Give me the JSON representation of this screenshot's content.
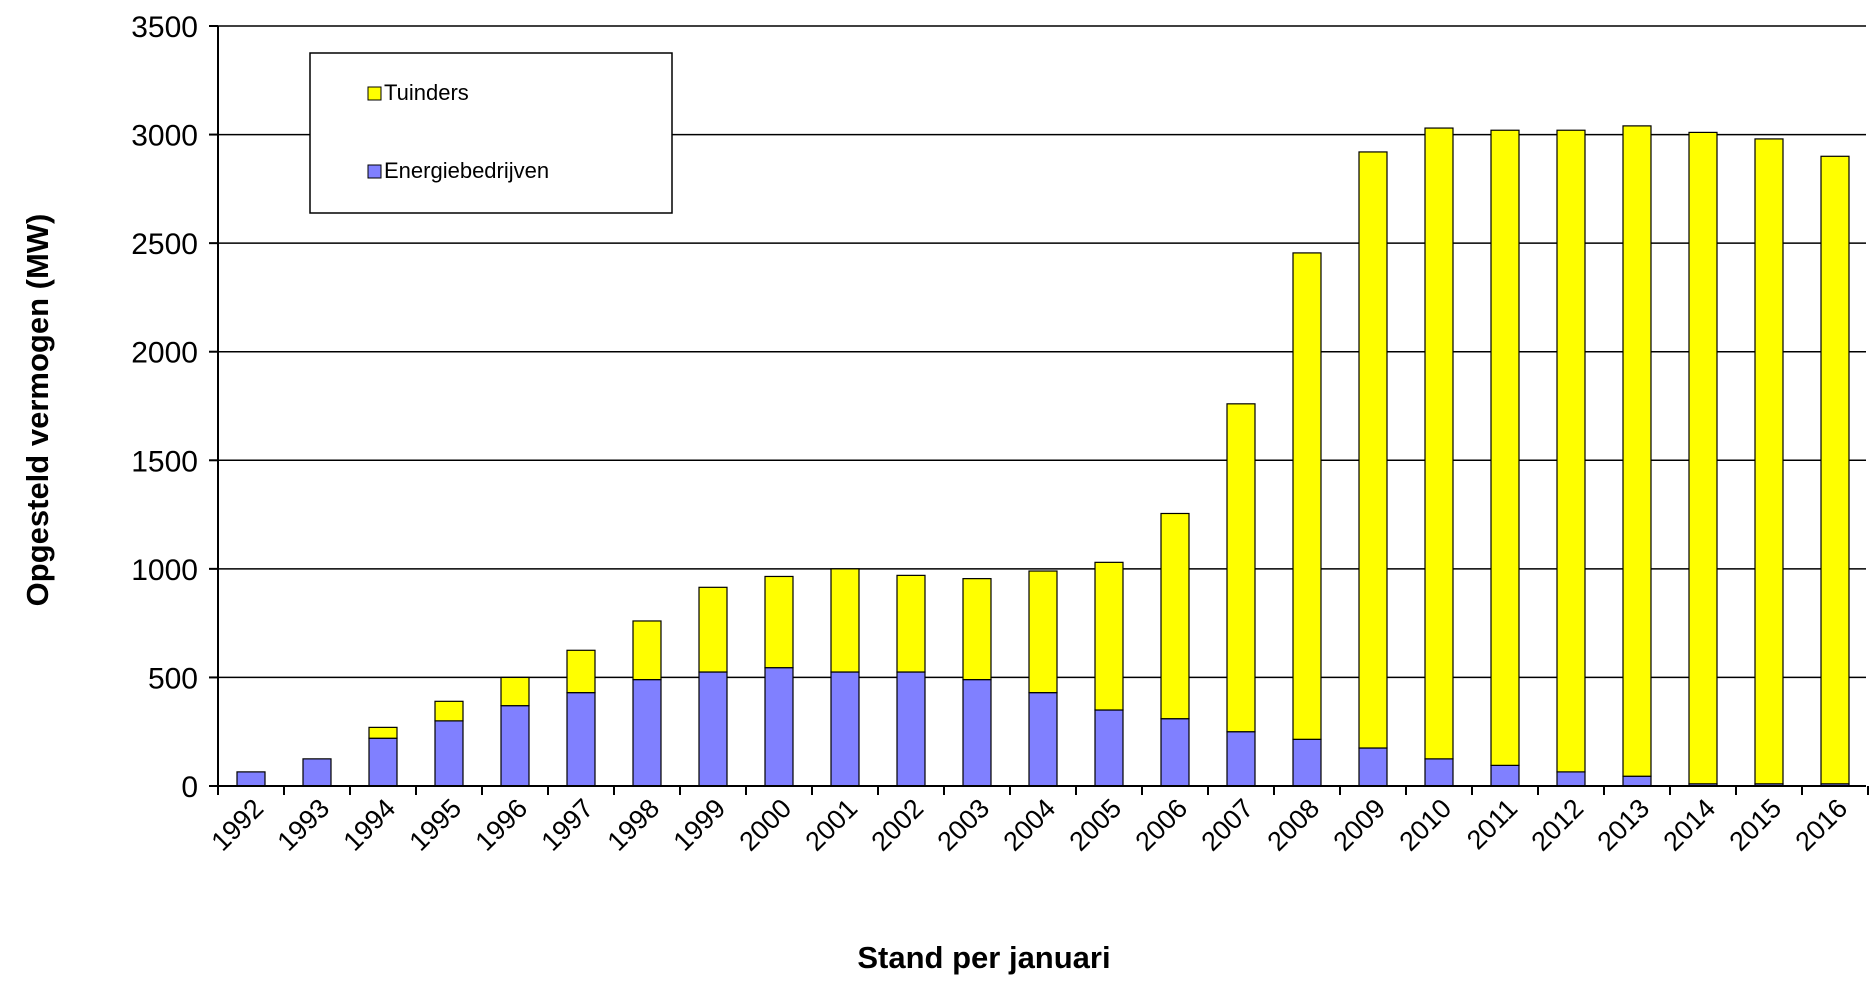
{
  "chart_data": {
    "type": "bar",
    "stacked": true,
    "title": "",
    "xlabel": "Stand per januari",
    "ylabel": "Opgesteld vermogen (MW)",
    "ylim": [
      0,
      3500
    ],
    "yticks": [
      "0",
      "500",
      "1000",
      "1500",
      "2000",
      "2500",
      "3000",
      "3500"
    ],
    "grid": true,
    "legend_position": "top-left",
    "categories": [
      "1992",
      "1993",
      "1994",
      "1995",
      "1996",
      "1997",
      "1998",
      "1999",
      "2000",
      "2001",
      "2002",
      "2003",
      "2004",
      "2005",
      "2006",
      "2007",
      "2008",
      "2009",
      "2010",
      "2011",
      "2012",
      "2013",
      "2014",
      "2015",
      "2016"
    ],
    "series": [
      {
        "name": "Energiebedrijven",
        "color": "#8080ff",
        "values": [
          65,
          125,
          220,
          300,
          370,
          430,
          490,
          525,
          545,
          525,
          525,
          490,
          430,
          350,
          310,
          250,
          215,
          175,
          125,
          95,
          65,
          45,
          10,
          10,
          10
        ]
      },
      {
        "name": "Tuinders",
        "color": "#ffff00",
        "values": [
          0,
          0,
          50,
          90,
          130,
          195,
          270,
          390,
          420,
          475,
          445,
          465,
          560,
          680,
          945,
          1510,
          2240,
          2745,
          2905,
          2925,
          2955,
          2995,
          3000,
          2970,
          2890
        ]
      }
    ]
  }
}
